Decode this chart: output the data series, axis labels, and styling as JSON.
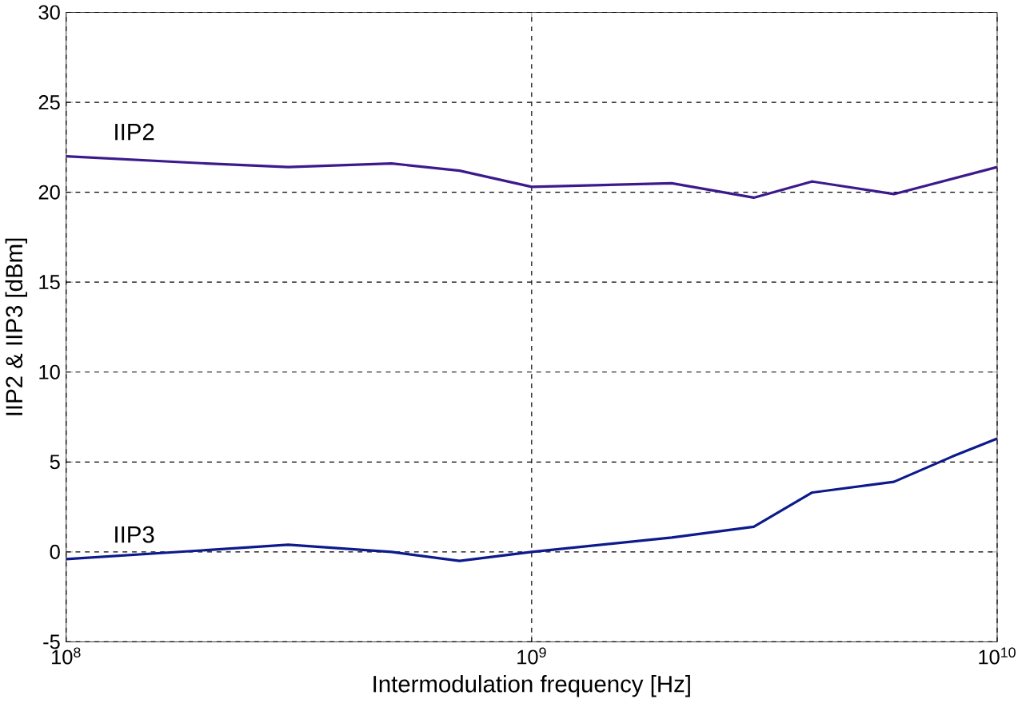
{
  "chart_data": {
    "type": "line",
    "xlabel": "Intermodulation frequency [Hz]",
    "ylabel": "IIP2 & IIP3 [dBm]",
    "log": "x",
    "grid": true,
    "legend": false,
    "marker": "none",
    "line_style": "solid",
    "xlim": [
      100000000,
      10000000000
    ],
    "ylim": [
      -5,
      30
    ],
    "xticks": [
      {
        "value": 100000000,
        "label": "10$^{8}$"
      },
      {
        "value": 1000000000,
        "label": "10$^{9}$"
      },
      {
        "value": 10000000000,
        "label": "10$^{10}$"
      }
    ],
    "yticks": [
      -5,
      0,
      5,
      10,
      15,
      20,
      25,
      30
    ],
    "series": [
      {
        "name": "IIP2",
        "color": "#3c1a8c",
        "x": [
          100000000,
          200000000,
          300000000,
          500000000,
          700000000,
          1000000000,
          2000000000,
          3000000000,
          4000000000,
          6000000000,
          10000000000
        ],
        "values": [
          22.0,
          21.6,
          21.4,
          21.6,
          21.2,
          20.3,
          20.5,
          19.7,
          20.6,
          19.9,
          21.4
        ]
      },
      {
        "name": "IIP3",
        "color": "#0c1a8c",
        "x": [
          100000000,
          200000000,
          300000000,
          500000000,
          700000000,
          1000000000,
          2000000000,
          3000000000,
          4000000000,
          6000000000,
          8000000000,
          10000000000
        ],
        "values": [
          -0.4,
          0.1,
          0.4,
          0.0,
          -0.5,
          0.0,
          0.8,
          1.4,
          3.3,
          3.9,
          5.3,
          6.3
        ]
      }
    ]
  }
}
